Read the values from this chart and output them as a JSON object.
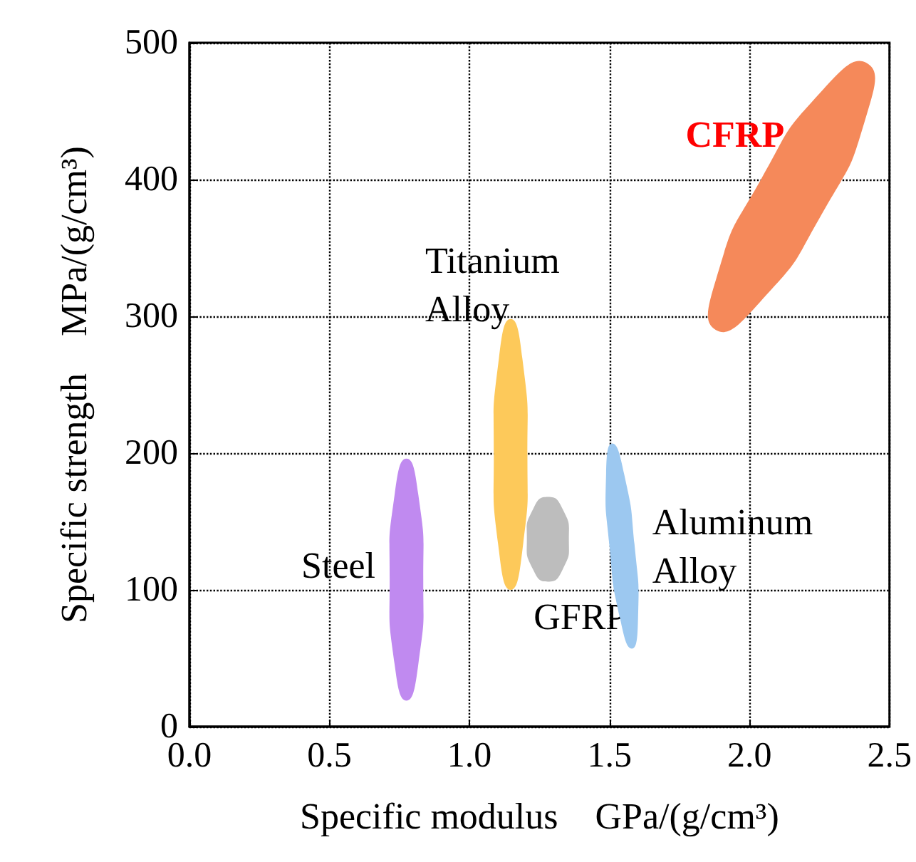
{
  "chart_data": {
    "type": "area",
    "xlabel": "Specific modulus　GPa/(g/cm³)",
    "ylabel": "Specific strength　MPa/(g/cm³)",
    "xlim": [
      0,
      2.5
    ],
    "ylim": [
      0,
      500
    ],
    "xticks": [
      {
        "value": 0,
        "label": "0.0"
      },
      {
        "value": 0.5,
        "label": "0.5"
      },
      {
        "value": 1,
        "label": "1.0"
      },
      {
        "value": 1.5,
        "label": "1.5"
      },
      {
        "value": 2,
        "label": "2.0"
      },
      {
        "value": 2.5,
        "label": "2.5"
      }
    ],
    "yticks": [
      0,
      100,
      200,
      300,
      400,
      500
    ],
    "grid": true,
    "legend": false,
    "series": [
      {
        "name": "Steel",
        "color": "#c08af0",
        "x": [
          0.835,
          0.817,
          0.775,
          0.733,
          0.715,
          0.733,
          0.775,
          0.817
        ],
        "values": [
          108,
          170,
          196,
          170,
          108,
          45,
          19,
          45
        ]
      },
      {
        "name": "Titanium\nAlloy",
        "color": "#fdc95a",
        "x": [
          1.207,
          1.189,
          1.147,
          1.105,
          1.087,
          1.105,
          1.147,
          1.189
        ],
        "values": [
          199,
          269,
          298,
          269,
          199,
          129,
          100,
          129
        ]
      },
      {
        "name": "GFRP",
        "color": "#bdbdbd",
        "x": [
          1.355,
          1.333,
          1.28,
          1.227,
          1.205,
          1.227,
          1.28,
          1.333
        ],
        "values": [
          137,
          159,
          168,
          159,
          137,
          115,
          106,
          115
        ]
      },
      {
        "name": "Aluminum\nAlloy",
        "color": "#9cc8f0",
        "x": [
          1.51,
          1.488,
          1.5,
          1.538,
          1.58,
          1.602,
          1.59,
          1.552
        ],
        "values": [
          207,
          185,
          132,
          79,
          57,
          79,
          132,
          185
        ]
      },
      {
        "name": "CFRP",
        "color": "#f5895a",
        "x": [
          2.42,
          2.264,
          2.041,
          1.882,
          1.88,
          2.036,
          2.259,
          2.418
        ],
        "values": [
          485,
          466,
          400,
          328,
          290,
          310,
          375,
          447
        ]
      }
    ]
  }
}
